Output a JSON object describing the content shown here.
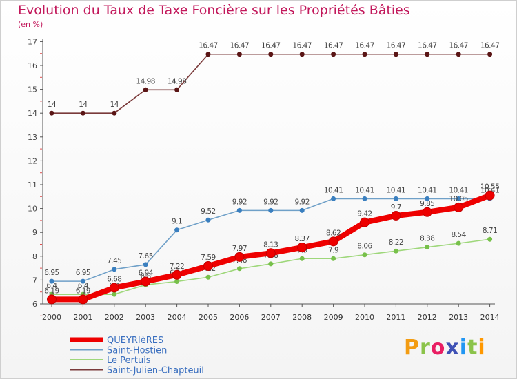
{
  "title": "Evolution du Taux de Taxe Foncière sur les Propriétés Bâties",
  "unit": "(en %)",
  "logo": {
    "text": "Proxiti",
    "colors": [
      "#f39c12",
      "#8bc34a",
      "#e91e63",
      "#3f51b5",
      "#2196f3",
      "#8bc34a",
      "#ff9800"
    ]
  },
  "chart_data": {
    "type": "line",
    "title": "Evolution du Taux de Taxe Foncière sur les Propriétés Bâties",
    "ylabel": "(en %)",
    "xlabel": "",
    "ylim": [
      6,
      17
    ],
    "yticks": [
      "6",
      "7",
      "8",
      "9",
      "10",
      "11",
      "12",
      "13",
      "14",
      "15",
      "16",
      "17"
    ],
    "categories": [
      "2000",
      "2001",
      "2002",
      "2003",
      "2004",
      "2005",
      "2006",
      "2007",
      "2008",
      "2009",
      "2010",
      "2011",
      "2012",
      "2013",
      "2014"
    ],
    "grid": false,
    "legend": "bottom-left",
    "series": [
      {
        "name": "Saint-Julien-Chapteuil",
        "color": "#7a3a3a",
        "marker": "#5a1515",
        "values": [
          14,
          14,
          14,
          14.98,
          14.98,
          16.47,
          16.47,
          16.47,
          16.47,
          16.47,
          16.47,
          16.47,
          16.47,
          16.47,
          16.47
        ],
        "labels": [
          "14",
          "14",
          "14",
          "14.98",
          "14.98",
          "16.47",
          "16.47",
          "16.47",
          "16.47",
          "16.47",
          "16.47",
          "16.47",
          "16.47",
          "16.47",
          "16.47"
        ]
      },
      {
        "name": "Saint-Hostien",
        "color": "#6fa0c8",
        "marker": "#3a7fbf",
        "values": [
          6.95,
          6.95,
          7.45,
          7.65,
          9.1,
          9.52,
          9.92,
          9.92,
          9.92,
          10.41,
          10.41,
          10.41,
          10.41,
          10.41,
          10.41
        ],
        "labels": [
          "6.95",
          "6.95",
          "7.45",
          "7.65",
          "9.1",
          "9.52",
          "9.92",
          "9.92",
          "9.92",
          "10.41",
          "10.41",
          "10.41",
          "10.41",
          "10.41",
          "10.41"
        ]
      },
      {
        "name": "Le Pertuis",
        "color": "#9ed77a",
        "marker": "#77c04a",
        "values": [
          6.4,
          6.4,
          6.4,
          6.8,
          6.94,
          7.12,
          7.48,
          7.68,
          7.9,
          7.9,
          8.06,
          8.22,
          8.38,
          8.54,
          8.71
        ],
        "labels": [
          "6.4",
          "6.4",
          "6.4",
          "6.8",
          "6.94",
          "7.12",
          "7.48",
          "7.68",
          "7.9",
          "7.9",
          "8.06",
          "8.22",
          "8.38",
          "8.54",
          "8.71"
        ]
      },
      {
        "name": "QUEYRIèRES",
        "color": "#ee0000",
        "marker": "#ee0000",
        "values": [
          6.19,
          6.19,
          6.68,
          6.94,
          7.22,
          7.59,
          7.97,
          8.13,
          8.37,
          8.62,
          9.42,
          9.7,
          9.85,
          10.05,
          10.55
        ],
        "labels": [
          "6.19",
          "6.19",
          "6.68",
          "6.94",
          "7.22",
          "7.59",
          "7.97",
          "8.13",
          "8.37",
          "8.62",
          "9.42",
          "9.7",
          "9.85",
          "10.05",
          "10.55"
        ]
      }
    ],
    "legend_entries": [
      {
        "name": "QUEYRIèRES",
        "color": "#ee0000"
      },
      {
        "name": "Saint-Hostien",
        "color": "#6fa0c8"
      },
      {
        "name": "Le Pertuis",
        "color": "#9ed77a"
      },
      {
        "name": "Saint-Julien-Chapteuil",
        "color": "#7a3a3a"
      }
    ]
  }
}
